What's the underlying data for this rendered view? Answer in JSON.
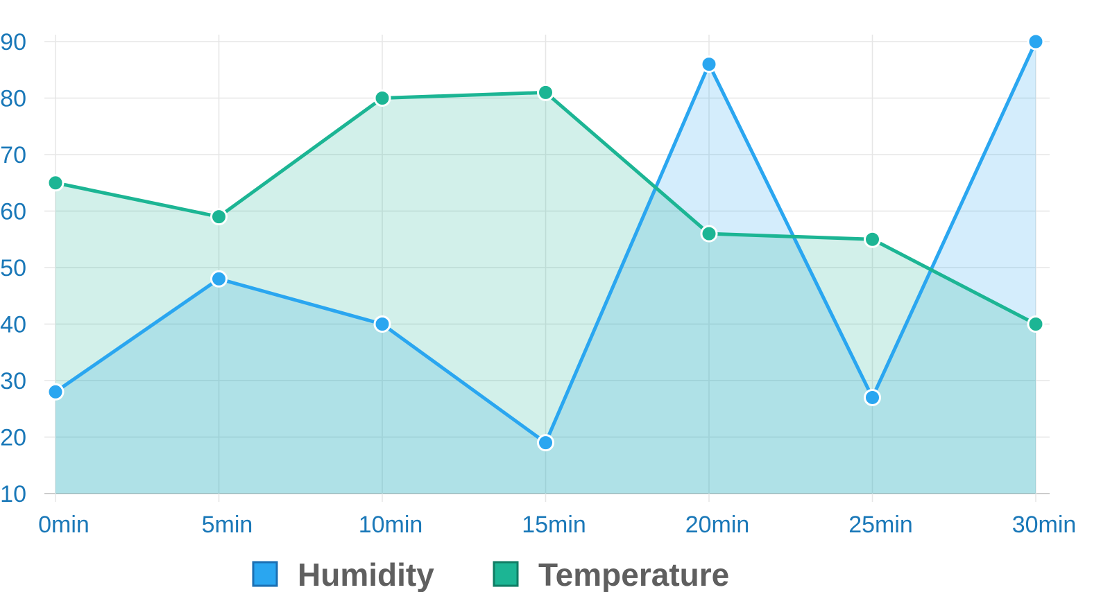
{
  "chart_data": {
    "type": "area",
    "categories": [
      "0min",
      "5min",
      "10min",
      "15min",
      "20min",
      "25min",
      "30min"
    ],
    "series": [
      {
        "name": "Humidity",
        "values": [
          28,
          48,
          40,
          19,
          86,
          27,
          90
        ],
        "color": "#2aa6f0"
      },
      {
        "name": "Temperature",
        "values": [
          65,
          59,
          80,
          81,
          56,
          55,
          40
        ],
        "color": "#1cb594"
      }
    ],
    "yticks": [
      "10",
      "20",
      "30",
      "40",
      "50",
      "60",
      "70",
      "80",
      "90"
    ],
    "ylim": [
      10,
      90
    ],
    "grid": true,
    "legend_position": "bottom-center"
  }
}
